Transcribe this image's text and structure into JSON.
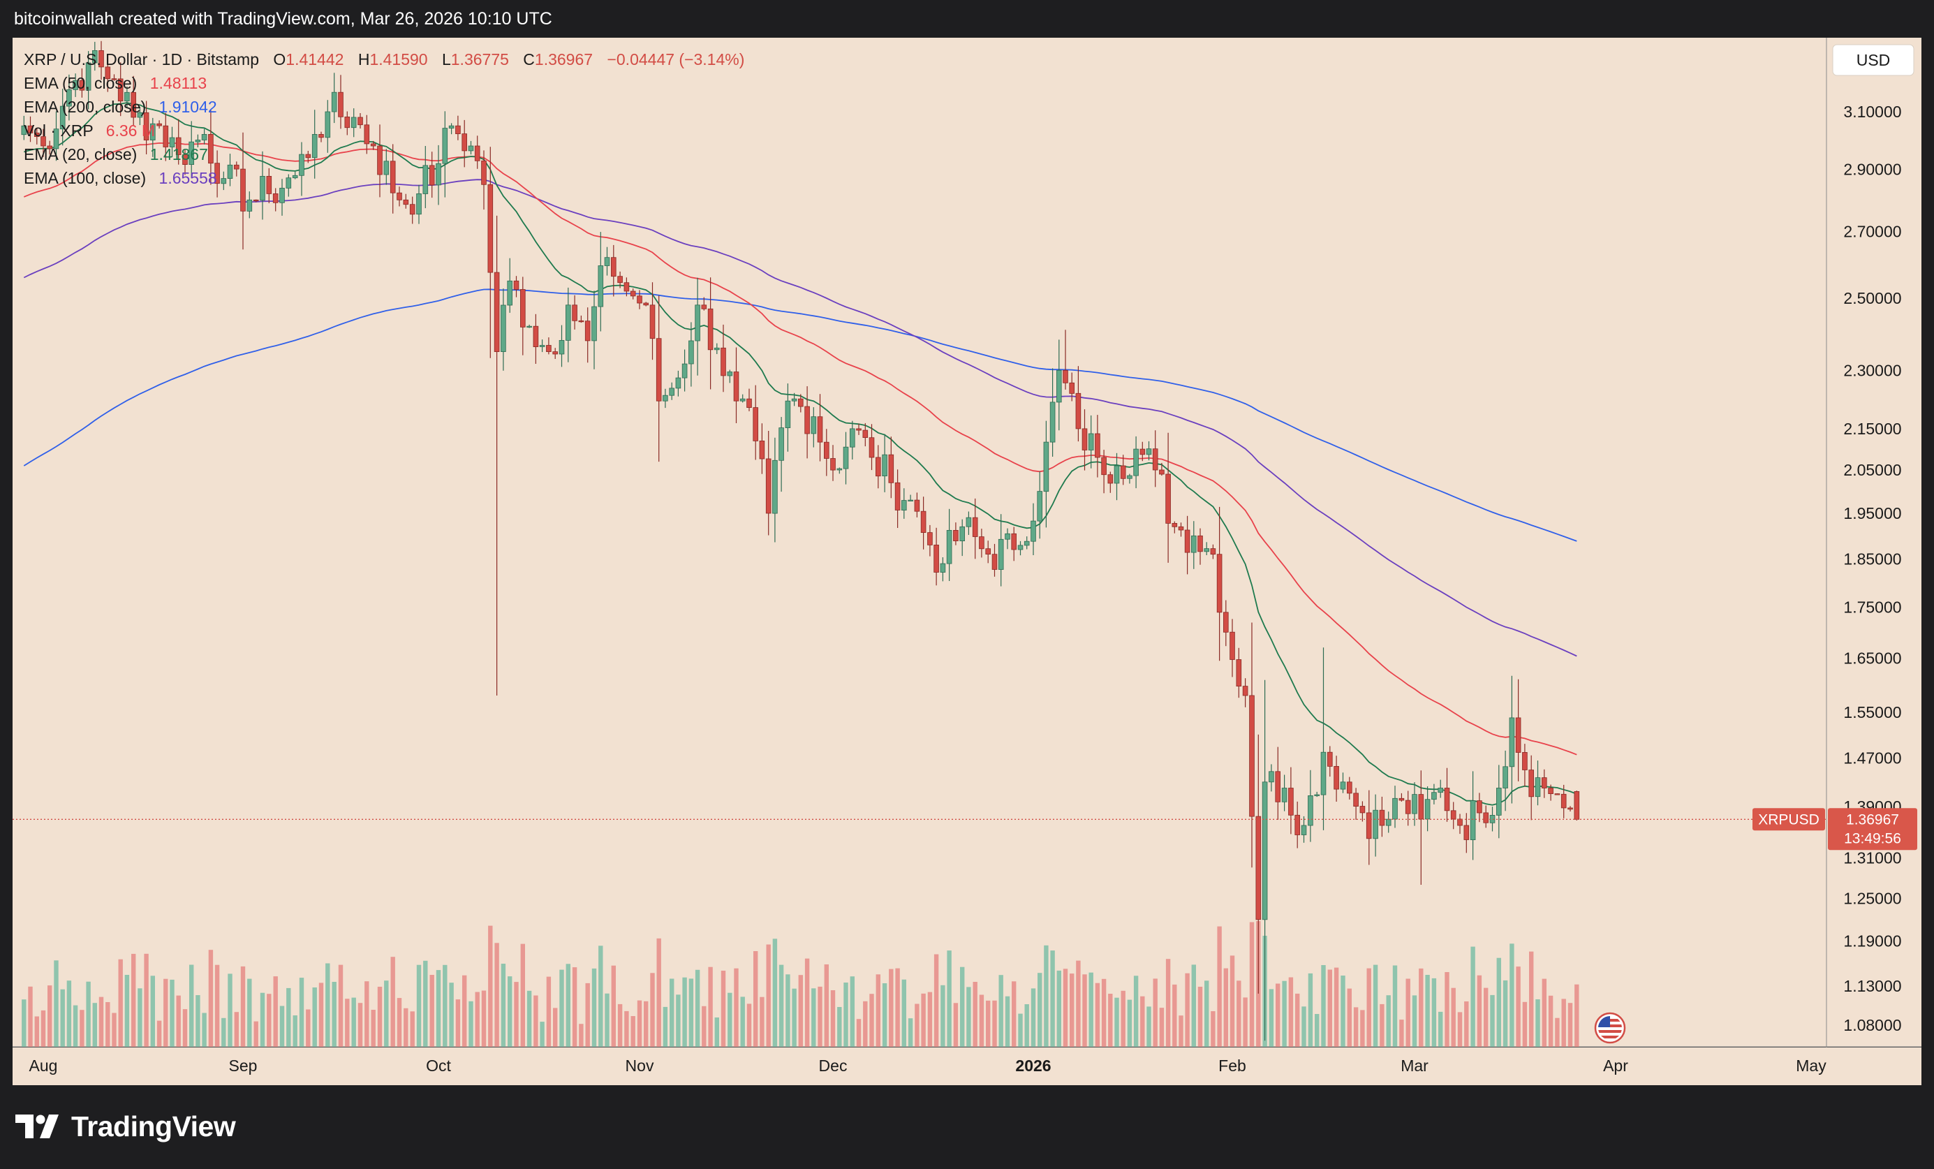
{
  "header": {
    "credit": "bitcoinwallah created with TradingView.com, Mar 26, 2026 10:10 UTC"
  },
  "footer": {
    "brand": "TradingView",
    "logo_icon": "tradingview-logo-icon"
  },
  "legend": {
    "symbol_line": {
      "symbol": "XRP / U.S. Dollar · 1D · Bitstamp",
      "open_label": "O",
      "open": "1.41442",
      "high_label": "H",
      "high": "1.41590",
      "low_label": "L",
      "low": "1.36775",
      "close_label": "C",
      "close": "1.36967",
      "change": "−0.04447 (−3.14%)"
    },
    "indicators": [
      {
        "label": "EMA (50, close)",
        "value": "1.48113",
        "color": "#e8424b"
      },
      {
        "label": "EMA (200, close)",
        "value": "1.91042",
        "color": "#2f5fe9"
      },
      {
        "label": "Vol · XRP",
        "value": "6.36 M",
        "color": "#e8424b"
      },
      {
        "label": "EMA (20, close)",
        "value": "1.41867",
        "color": "#1e7a4e"
      },
      {
        "label": "EMA (100, close)",
        "value": "1.65558",
        "color": "#6a3fbf"
      }
    ]
  },
  "price_scale": {
    "currency_button": "USD",
    "ticks": [
      "3.10000",
      "2.90000",
      "2.70000",
      "2.50000",
      "2.30000",
      "2.15000",
      "2.05000",
      "1.95000",
      "1.85000",
      "1.75000",
      "1.65000",
      "1.55000",
      "1.47000",
      "1.39000",
      "1.31000",
      "1.25000",
      "1.19000",
      "1.13000",
      "1.08000"
    ],
    "last_price_label": "XRPUSD",
    "last_price": "1.36967",
    "countdown": "13:49:56"
  },
  "time_scale": {
    "labels": [
      {
        "text": "Aug",
        "bold": false
      },
      {
        "text": "Sep",
        "bold": false
      },
      {
        "text": "Oct",
        "bold": false
      },
      {
        "text": "Nov",
        "bold": false
      },
      {
        "text": "Dec",
        "bold": false
      },
      {
        "text": "2026",
        "bold": true
      },
      {
        "text": "Feb",
        "bold": false
      },
      {
        "text": "Mar",
        "bold": false
      },
      {
        "text": "Apr",
        "bold": false
      },
      {
        "text": "May",
        "bold": false
      }
    ]
  },
  "colors": {
    "background": "#f2e1d1",
    "up_candle": "#5fa888",
    "down_candle": "#d24c45",
    "up_volume": "#8fc4ad",
    "down_volume": "#e89892",
    "ema20": "#1e7a4e",
    "ema50": "#e8424b",
    "ema100": "#6a3fbf",
    "ema200": "#2f5fe9",
    "price_badge": "#d9574a"
  },
  "chart_data": {
    "type": "candlestick",
    "symbol": "XRPUSD",
    "interval": "1D",
    "x_range": [
      "2025-07-29",
      "2026-05-01"
    ],
    "y_scale": "log",
    "y_range": [
      1.05,
      3.35
    ],
    "last": {
      "open": 1.41442,
      "high": 1.4159,
      "low": 1.36775,
      "close": 1.36967,
      "change": -0.04447,
      "change_pct": -3.14
    },
    "ema_last": {
      "ema20": 1.41867,
      "ema50": 1.48113,
      "ema100": 1.65558,
      "ema200": 1.91042
    },
    "volume_last": "6.36 M",
    "closes": [
      {
        "date": "2025-07-29",
        "close": 3.05
      },
      {
        "date": "2025-08-01",
        "close": 2.98
      },
      {
        "date": "2025-08-05",
        "close": 3.18
      },
      {
        "date": "2025-08-08",
        "close": 3.28
      },
      {
        "date": "2025-08-12",
        "close": 3.22
      },
      {
        "date": "2025-08-15",
        "close": 3.08
      },
      {
        "date": "2025-08-19",
        "close": 3.05
      },
      {
        "date": "2025-08-22",
        "close": 2.95
      },
      {
        "date": "2025-08-26",
        "close": 3.02
      },
      {
        "date": "2025-08-29",
        "close": 2.87
      },
      {
        "date": "2025-09-02",
        "close": 2.8
      },
      {
        "date": "2025-09-05",
        "close": 2.82
      },
      {
        "date": "2025-09-09",
        "close": 2.88
      },
      {
        "date": "2025-09-12",
        "close": 3.02
      },
      {
        "date": "2025-09-14",
        "close": 3.1
      },
      {
        "date": "2025-09-18",
        "close": 3.08
      },
      {
        "date": "2025-09-21",
        "close": 2.98
      },
      {
        "date": "2025-09-25",
        "close": 2.8
      },
      {
        "date": "2025-09-28",
        "close": 2.82
      },
      {
        "date": "2025-10-01",
        "close": 2.92
      },
      {
        "date": "2025-10-03",
        "close": 3.05
      },
      {
        "date": "2025-10-06",
        "close": 2.98
      },
      {
        "date": "2025-10-08",
        "close": 2.85
      },
      {
        "date": "2025-10-10",
        "close": 2.35
      },
      {
        "date": "2025-10-12",
        "close": 2.55
      },
      {
        "date": "2025-10-15",
        "close": 2.42
      },
      {
        "date": "2025-10-18",
        "close": 2.35
      },
      {
        "date": "2025-10-21",
        "close": 2.48
      },
      {
        "date": "2025-10-24",
        "close": 2.38
      },
      {
        "date": "2025-10-27",
        "close": 2.62
      },
      {
        "date": "2025-10-30",
        "close": 2.52
      },
      {
        "date": "2025-11-02",
        "close": 2.48
      },
      {
        "date": "2025-11-04",
        "close": 2.22
      },
      {
        "date": "2025-11-07",
        "close": 2.28
      },
      {
        "date": "2025-11-10",
        "close": 2.48
      },
      {
        "date": "2025-11-13",
        "close": 2.36
      },
      {
        "date": "2025-11-16",
        "close": 2.22
      },
      {
        "date": "2025-11-19",
        "close": 2.12
      },
      {
        "date": "2025-11-21",
        "close": 1.95
      },
      {
        "date": "2025-11-24",
        "close": 2.22
      },
      {
        "date": "2025-11-28",
        "close": 2.18
      },
      {
        "date": "2025-12-01",
        "close": 2.05
      },
      {
        "date": "2025-12-04",
        "close": 2.15
      },
      {
        "date": "2025-12-07",
        "close": 2.08
      },
      {
        "date": "2025-12-10",
        "close": 2.02
      },
      {
        "date": "2025-12-13",
        "close": 1.98
      },
      {
        "date": "2025-12-16",
        "close": 1.88
      },
      {
        "date": "2025-12-18",
        "close": 1.84
      },
      {
        "date": "2025-12-21",
        "close": 1.92
      },
      {
        "date": "2025-12-25",
        "close": 1.86
      },
      {
        "date": "2025-12-29",
        "close": 1.87
      },
      {
        "date": "2026-01-02",
        "close": 2.0
      },
      {
        "date": "2026-01-05",
        "close": 2.3
      },
      {
        "date": "2026-01-08",
        "close": 2.15
      },
      {
        "date": "2026-01-11",
        "close": 2.08
      },
      {
        "date": "2026-01-14",
        "close": 2.06
      },
      {
        "date": "2026-01-17",
        "close": 2.1
      },
      {
        "date": "2026-01-20",
        "close": 2.05
      },
      {
        "date": "2026-01-23",
        "close": 1.92
      },
      {
        "date": "2026-01-26",
        "close": 1.9
      },
      {
        "date": "2026-01-29",
        "close": 1.86
      },
      {
        "date": "2026-01-31",
        "close": 1.7
      },
      {
        "date": "2026-02-03",
        "close": 1.58
      },
      {
        "date": "2026-02-05",
        "close": 1.22
      },
      {
        "date": "2026-02-06",
        "close": 1.43
      },
      {
        "date": "2026-02-09",
        "close": 1.42
      },
      {
        "date": "2026-02-12",
        "close": 1.36
      },
      {
        "date": "2026-02-15",
        "close": 1.48
      },
      {
        "date": "2026-02-18",
        "close": 1.43
      },
      {
        "date": "2026-02-21",
        "close": 1.38
      },
      {
        "date": "2026-02-24",
        "close": 1.36
      },
      {
        "date": "2026-02-27",
        "close": 1.4
      },
      {
        "date": "2026-03-02",
        "close": 1.37
      },
      {
        "date": "2026-03-05",
        "close": 1.42
      },
      {
        "date": "2026-03-08",
        "close": 1.36
      },
      {
        "date": "2026-03-11",
        "close": 1.38
      },
      {
        "date": "2026-03-14",
        "close": 1.42
      },
      {
        "date": "2026-03-16",
        "close": 1.54
      },
      {
        "date": "2026-03-18",
        "close": 1.45
      },
      {
        "date": "2026-03-21",
        "close": 1.42
      },
      {
        "date": "2026-03-23",
        "close": 1.41
      },
      {
        "date": "2026-03-26",
        "close": 1.36967
      }
    ]
  }
}
